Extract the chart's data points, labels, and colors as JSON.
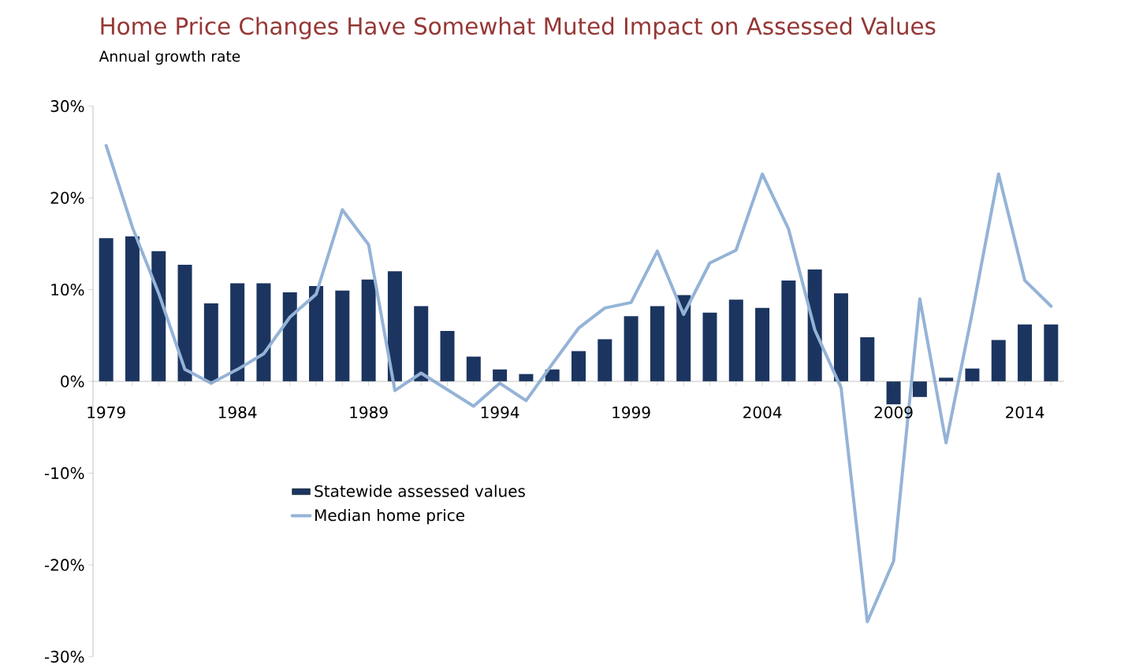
{
  "chart_data": {
    "type": "bar",
    "title": "Home Price Changes Have Somewhat Muted Impact on Assessed Values",
    "subtitle": "Annual growth rate",
    "categories": [
      "1979",
      null,
      null,
      null,
      null,
      "1984",
      null,
      null,
      null,
      null,
      "1989",
      null,
      null,
      null,
      null,
      "1994",
      null,
      null,
      null,
      null,
      "1999",
      null,
      null,
      null,
      null,
      "2004",
      null,
      null,
      null,
      null,
      "2009",
      null,
      null,
      null,
      null,
      "2014",
      null
    ],
    "series": [
      {
        "name": "Statewide assessed values",
        "color": "#1b3560",
        "values": [
          15.6,
          15.8,
          14.2,
          12.7,
          8.5,
          10.7,
          10.7,
          9.7,
          10.4,
          9.9,
          11.1,
          12.0,
          8.2,
          5.5,
          2.7,
          1.3,
          0.8,
          1.3,
          3.3,
          4.6,
          7.1,
          8.2,
          9.4,
          7.5,
          8.9,
          8.0,
          11.0,
          12.2,
          9.6,
          4.8,
          -2.5,
          -1.7,
          0.4,
          1.4,
          4.5,
          6.2,
          6.2
        ]
      },
      {
        "name": "Median home price",
        "type": "line",
        "color": "#95b3d7",
        "values": [
          25.7,
          16.8,
          9.6,
          1.3,
          -0.2,
          1.3,
          3.0,
          7.0,
          9.5,
          18.7,
          14.9,
          -1.0,
          0.9,
          -0.9,
          -2.7,
          -0.2,
          -2.1,
          1.9,
          5.8,
          8.0,
          8.6,
          14.2,
          7.3,
          12.9,
          14.3,
          22.6,
          16.6,
          5.6,
          -0.7,
          -26.2,
          -19.6,
          9.0,
          -6.7,
          7.5,
          22.6,
          11.0,
          8.2
        ]
      }
    ],
    "ylim": [
      -30,
      30
    ],
    "yticks": [
      {
        "value": -30,
        "label": "-30%"
      },
      {
        "value": -20,
        "label": "-20%"
      },
      {
        "value": -10,
        "label": "-10%"
      },
      {
        "value": 0,
        "label": "0%"
      },
      {
        "value": 10,
        "label": "10%"
      },
      {
        "value": 20,
        "label": "20%"
      },
      {
        "value": 30,
        "label": "30%"
      }
    ],
    "grid": false,
    "legend": "bottom left"
  }
}
